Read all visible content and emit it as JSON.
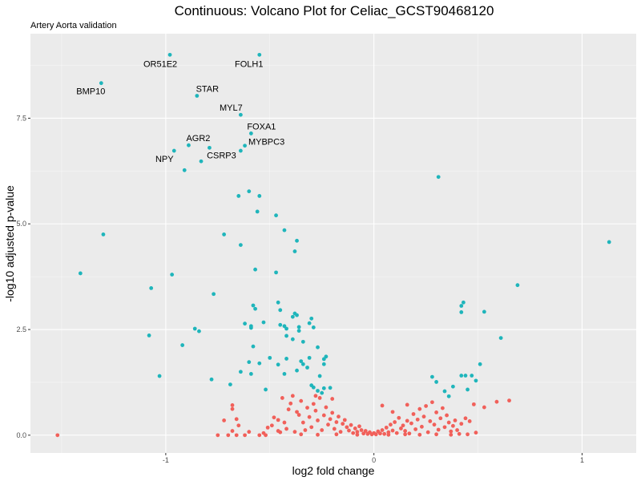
{
  "chart_data": {
    "type": "scatter",
    "title": "Continuous: Volcano Plot for Celiac_GCST90468120",
    "subtitle": "Artery Aorta validation",
    "xlabel": "log2 fold change",
    "ylabel": "-log10 adjusted p-value",
    "xlim": [
      -1.65,
      1.26
    ],
    "ylim": [
      -0.42,
      9.5
    ],
    "x_ticks": [
      -1,
      0,
      1
    ],
    "x_tick_labels": [
      "-1",
      "0",
      "1"
    ],
    "y_ticks": [
      0,
      2.5,
      5,
      7.5
    ],
    "y_tick_labels": [
      "0.0",
      "2.5",
      "5.0",
      "7.5"
    ],
    "grid": true,
    "legend": "none",
    "colors": {
      "panel": "#ebebeb",
      "grid_major": "#ffffff",
      "significant": "#1fb5bb",
      "not_significant": "#f1605a"
    },
    "significant_points": [
      [
        -0.98,
        9.0
      ],
      [
        -0.55,
        9.0
      ],
      [
        -1.31,
        8.33
      ],
      [
        -0.85,
        8.03
      ],
      [
        -0.64,
        7.58
      ],
      [
        -0.59,
        7.14
      ],
      [
        -0.62,
        6.85
      ],
      [
        -0.64,
        6.73
      ],
      [
        -0.89,
        6.86
      ],
      [
        -0.79,
        6.8
      ],
      [
        -0.96,
        6.73
      ],
      [
        -0.83,
        6.48
      ],
      [
        -0.91,
        6.27
      ],
      [
        0.31,
        6.11
      ],
      [
        -0.6,
        5.77
      ],
      [
        -0.55,
        5.66
      ],
      [
        -0.65,
        5.66
      ],
      [
        -0.56,
        5.29
      ],
      [
        -0.47,
        5.2
      ],
      [
        -0.43,
        4.85
      ],
      [
        -0.72,
        4.75
      ],
      [
        -1.3,
        4.75
      ],
      [
        -0.37,
        4.6
      ],
      [
        -0.38,
        4.35
      ],
      [
        -0.64,
        4.5
      ],
      [
        1.13,
        4.57
      ],
      [
        -1.41,
        3.83
      ],
      [
        -0.97,
        3.8
      ],
      [
        -0.57,
        3.92
      ],
      [
        -0.47,
        3.85
      ],
      [
        -1.07,
        3.48
      ],
      [
        0.69,
        3.55
      ],
      [
        -0.77,
        3.34
      ],
      [
        0.43,
        3.14
      ],
      [
        0.42,
        3.06
      ],
      [
        -0.46,
        3.14
      ],
      [
        -0.58,
        3.07
      ],
      [
        -0.57,
        2.99
      ],
      [
        -0.45,
        2.96
      ],
      [
        0.42,
        2.91
      ],
      [
        0.53,
        2.92
      ],
      [
        -0.38,
        2.88
      ],
      [
        -0.37,
        2.84
      ],
      [
        -0.39,
        2.8
      ],
      [
        -0.3,
        2.76
      ],
      [
        -0.53,
        2.67
      ],
      [
        -0.62,
        2.64
      ],
      [
        -0.59,
        2.58
      ],
      [
        -0.59,
        2.54
      ],
      [
        -0.45,
        2.61
      ],
      [
        -0.43,
        2.58
      ],
      [
        -0.36,
        2.56
      ],
      [
        -0.31,
        2.65
      ],
      [
        -0.29,
        2.55
      ],
      [
        -0.86,
        2.52
      ],
      [
        -0.84,
        2.46
      ],
      [
        -0.36,
        2.47
      ],
      [
        -0.42,
        2.52
      ],
      [
        -1.08,
        2.36
      ],
      [
        -0.42,
        2.35
      ],
      [
        -0.39,
        2.27
      ],
      [
        -0.34,
        2.21
      ],
      [
        0.61,
        2.3
      ],
      [
        -0.92,
        2.13
      ],
      [
        -0.58,
        2.1
      ],
      [
        -0.27,
        2.08
      ],
      [
        -0.5,
        1.83
      ],
      [
        -0.31,
        1.83
      ],
      [
        -0.34,
        1.68
      ],
      [
        -0.46,
        1.67
      ],
      [
        -0.42,
        1.81
      ],
      [
        -0.23,
        1.86
      ],
      [
        -0.24,
        1.8
      ],
      [
        -0.35,
        1.75
      ],
      [
        -0.6,
        1.73
      ],
      [
        -0.55,
        1.7
      ],
      [
        -0.24,
        1.68
      ],
      [
        -0.32,
        1.6
      ],
      [
        -0.37,
        1.53
      ],
      [
        -0.59,
        1.45
      ],
      [
        -0.64,
        1.5
      ],
      [
        -0.43,
        1.45
      ],
      [
        -0.26,
        1.4
      ],
      [
        -1.03,
        1.4
      ],
      [
        0.42,
        1.41
      ],
      [
        0.44,
        1.41
      ],
      [
        0.47,
        1.41
      ],
      [
        0.51,
        1.68
      ],
      [
        0.28,
        1.38
      ],
      [
        0.3,
        1.26
      ],
      [
        0.49,
        1.29
      ],
      [
        -0.78,
        1.32
      ],
      [
        -0.69,
        1.2
      ],
      [
        -0.3,
        1.18
      ],
      [
        -0.29,
        1.13
      ],
      [
        -0.24,
        1.11
      ],
      [
        -0.21,
        1.12
      ],
      [
        -0.27,
        1.05
      ],
      [
        -0.25,
        1.0
      ],
      [
        -0.52,
        1.08
      ],
      [
        0.34,
        1.04
      ],
      [
        0.45,
        1.08
      ],
      [
        0.38,
        1.15
      ],
      [
        0.36,
        0.92
      ]
    ],
    "nonsignificant_points": [
      [
        -1.52,
        0.0
      ],
      [
        -0.75,
        0.0
      ],
      [
        -0.7,
        0.0
      ],
      [
        -0.66,
        0.0
      ],
      [
        -0.62,
        0.0
      ],
      [
        -0.55,
        0.0
      ],
      [
        -0.52,
        0.0
      ],
      [
        -0.68,
        0.62
      ],
      [
        -0.68,
        0.71
      ],
      [
        -0.66,
        0.38
      ],
      [
        -0.72,
        0.35
      ],
      [
        -0.65,
        0.23
      ],
      [
        -0.68,
        0.1
      ],
      [
        -0.6,
        0.08
      ],
      [
        -0.51,
        0.18
      ],
      [
        -0.49,
        0.23
      ],
      [
        -0.53,
        0.05
      ],
      [
        -0.48,
        0.42
      ],
      [
        -0.46,
        0.36
      ],
      [
        -0.45,
        0.07
      ],
      [
        -0.44,
        0.88
      ],
      [
        -0.43,
        0.3
      ],
      [
        -0.41,
        0.61
      ],
      [
        -0.4,
        0.75
      ],
      [
        -0.39,
        0.93
      ],
      [
        -0.37,
        0.55
      ],
      [
        -0.36,
        0.48
      ],
      [
        -0.35,
        0.81
      ],
      [
        -0.34,
        0.3
      ],
      [
        -0.32,
        0.65
      ],
      [
        -0.31,
        0.43
      ],
      [
        -0.3,
        0.19
      ],
      [
        -0.29,
        0.74
      ],
      [
        -0.28,
        0.58
      ],
      [
        -0.27,
        0.35
      ],
      [
        -0.26,
        0.88
      ],
      [
        -0.25,
        0.12
      ],
      [
        -0.24,
        0.47
      ],
      [
        -0.23,
        0.66
      ],
      [
        -0.22,
        0.25
      ],
      [
        -0.21,
        0.38
      ],
      [
        -0.2,
        0.53
      ],
      [
        -0.19,
        0.15
      ],
      [
        -0.18,
        0.31
      ],
      [
        -0.17,
        0.44
      ],
      [
        -0.16,
        0.08
      ],
      [
        -0.15,
        0.27
      ],
      [
        -0.14,
        0.36
      ],
      [
        -0.13,
        0.19
      ],
      [
        -0.12,
        0.11
      ],
      [
        -0.11,
        0.24
      ],
      [
        -0.1,
        0.05
      ],
      [
        -0.09,
        0.16
      ],
      [
        -0.08,
        0.08
      ],
      [
        -0.07,
        0.21
      ],
      [
        -0.06,
        0.12
      ],
      [
        -0.05,
        0.04
      ],
      [
        -0.04,
        0.1
      ],
      [
        -0.03,
        0.03
      ],
      [
        -0.02,
        0.07
      ],
      [
        -0.01,
        0.02
      ],
      [
        0.0,
        0.05
      ],
      [
        0.01,
        0.02
      ],
      [
        0.02,
        0.09
      ],
      [
        0.03,
        0.04
      ],
      [
        0.04,
        0.12
      ],
      [
        0.05,
        0.03
      ],
      [
        0.06,
        0.18
      ],
      [
        0.07,
        0.07
      ],
      [
        0.08,
        0.25
      ],
      [
        0.09,
        0.11
      ],
      [
        0.1,
        0.31
      ],
      [
        0.11,
        0.05
      ],
      [
        0.12,
        0.41
      ],
      [
        0.13,
        0.16
      ],
      [
        0.14,
        0.23
      ],
      [
        0.15,
        0.1
      ],
      [
        0.16,
        0.34
      ],
      [
        0.17,
        0.04
      ],
      [
        0.18,
        0.28
      ],
      [
        0.19,
        0.5
      ],
      [
        0.2,
        0.14
      ],
      [
        0.21,
        0.37
      ],
      [
        0.22,
        0.62
      ],
      [
        0.23,
        0.2
      ],
      [
        0.24,
        0.44
      ],
      [
        0.25,
        0.69
      ],
      [
        0.26,
        0.07
      ],
      [
        0.27,
        0.33
      ],
      [
        0.28,
        0.78
      ],
      [
        0.29,
        0.25
      ],
      [
        0.3,
        0.54
      ],
      [
        0.31,
        0.13
      ],
      [
        0.32,
        0.4
      ],
      [
        0.33,
        0.64
      ],
      [
        0.34,
        0.19
      ],
      [
        0.35,
        0.47
      ],
      [
        0.36,
        0.3
      ],
      [
        0.37,
        0.09
      ],
      [
        0.38,
        0.22
      ],
      [
        0.39,
        0.35
      ],
      [
        0.4,
        0.12
      ],
      [
        0.42,
        0.27
      ],
      [
        0.44,
        0.4
      ],
      [
        0.46,
        0.33
      ],
      [
        0.48,
        0.73
      ],
      [
        0.49,
        0.06
      ],
      [
        0.53,
        0.66
      ],
      [
        0.59,
        0.79
      ],
      [
        0.65,
        0.82
      ],
      [
        0.04,
        0.7
      ],
      [
        0.16,
        0.72
      ],
      [
        0.09,
        0.55
      ],
      [
        -0.2,
        0.86
      ],
      [
        -0.28,
        0.93
      ],
      [
        -0.33,
        0.12
      ],
      [
        -0.38,
        0.08
      ],
      [
        -0.42,
        0.15
      ],
      [
        -0.46,
        0.1
      ],
      [
        -0.35,
        0.02
      ],
      [
        -0.27,
        0.01
      ],
      [
        -0.18,
        0.02
      ],
      [
        -0.08,
        0.01
      ],
      [
        0.07,
        0.01
      ],
      [
        0.15,
        0.02
      ],
      [
        0.22,
        0.01
      ],
      [
        0.3,
        0.02
      ],
      [
        0.37,
        0.01
      ],
      [
        0.41,
        0.03
      ],
      [
        0.45,
        0.02
      ]
    ],
    "annotations": [
      {
        "label": "OR51E2",
        "x": -0.98,
        "y": 9.0,
        "dx": -12,
        "dy": 15
      },
      {
        "label": "FOLH1",
        "x": -0.55,
        "y": 9.0,
        "dx": -13,
        "dy": 15
      },
      {
        "label": "BMP10",
        "x": -1.31,
        "y": 8.33,
        "dx": -13,
        "dy": 14
      },
      {
        "label": "STAR",
        "x": -0.85,
        "y": 8.03,
        "dx": 13,
        "dy": -5
      },
      {
        "label": "MYL7",
        "x": -0.64,
        "y": 7.58,
        "dx": -12,
        "dy": -5
      },
      {
        "label": "FOXA1",
        "x": -0.59,
        "y": 7.14,
        "dx": 13,
        "dy": -5
      },
      {
        "label": "MYBPC3",
        "x": -0.62,
        "y": 6.85,
        "dx": 27,
        "dy": -1
      },
      {
        "label": "AGR2",
        "x": -0.89,
        "y": 6.86,
        "dx": 12,
        "dy": -5
      },
      {
        "label": "CSRP3",
        "x": -0.79,
        "y": 6.8,
        "dx": 15,
        "dy": 13
      },
      {
        "label": "NPY",
        "x": -0.96,
        "y": 6.73,
        "dx": -12,
        "dy": 14
      }
    ]
  }
}
